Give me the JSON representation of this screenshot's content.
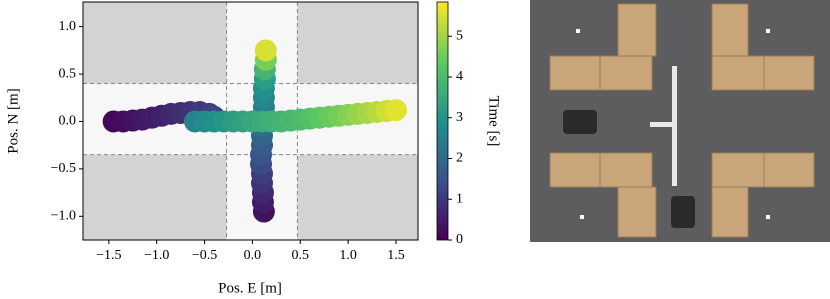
{
  "chart_data": {
    "type": "scatter",
    "xlabel": "Pos. E [m]",
    "ylabel": "Pos. N [m]",
    "colorbar_label": "Time [s]",
    "colormap": "viridis",
    "xlim": [
      -1.77,
      1.73
    ],
    "ylim": [
      -1.25,
      1.26
    ],
    "clim": [
      0,
      5.84
    ],
    "xticks": [
      {
        "value": -1.5,
        "label": "−1.5"
      },
      {
        "value": -1.0,
        "label": "−1.0"
      },
      {
        "value": -0.5,
        "label": "−0.5"
      },
      {
        "value": 0.0,
        "label": "0.0"
      },
      0.5,
      {
        "value": 1.0,
        "label": "1.0"
      },
      1.5
    ],
    "yticks": [
      {
        "value": -1.0,
        "label": "−1.0"
      },
      {
        "value": -0.5,
        "label": "−0.5"
      },
      {
        "value": 0.0,
        "label": "0.0"
      },
      0.5,
      {
        "value": 1.0,
        "label": "1.0"
      }
    ],
    "cticks": [
      0,
      1,
      2,
      3,
      4,
      5
    ],
    "lanes": {
      "x": [
        -0.27,
        0.47
      ],
      "y": [
        -0.35,
        0.4
      ]
    },
    "series": [
      {
        "x": [
          0.12,
          0.11,
          0.11,
          0.1,
          0.1,
          0.09,
          0.09,
          0.1,
          0.1,
          0.11,
          0.12,
          0.12,
          0.12,
          0.12,
          0.13,
          0.13,
          0.14,
          0.14
        ],
        "y": [
          -0.95,
          -0.85,
          -0.75,
          -0.65,
          -0.55,
          -0.45,
          -0.35,
          -0.25,
          -0.15,
          -0.05,
          0.05,
          0.15,
          0.25,
          0.35,
          0.45,
          0.55,
          0.65,
          0.75
        ],
        "t": [
          0.3,
          0.5,
          0.7,
          0.9,
          1.1,
          1.3,
          1.5,
          1.7,
          1.9,
          2.1,
          2.3,
          2.5,
          2.7,
          2.9,
          3.2,
          3.8,
          4.6,
          5.5
        ]
      },
      {
        "x": [
          -1.45,
          -1.35,
          -1.25,
          -1.15,
          -1.05,
          -0.95,
          -0.85,
          -0.75,
          -0.65,
          -0.55,
          -0.45,
          -0.4,
          -0.6,
          -0.5,
          -0.4,
          -0.3,
          -0.2,
          -0.1,
          0.0,
          0.1,
          0.2,
          0.3,
          0.4,
          0.5,
          0.6,
          0.7,
          0.8,
          0.9,
          1.0,
          1.1,
          1.2,
          1.3,
          1.4,
          1.5
        ],
        "y": [
          0.0,
          0.0,
          0.01,
          0.02,
          0.04,
          0.06,
          0.08,
          0.09,
          0.1,
          0.1,
          0.08,
          0.05,
          0.0,
          0.0,
          0.0,
          0.0,
          0.0,
          0.0,
          0.0,
          0.0,
          0.0,
          0.0,
          0.01,
          0.02,
          0.03,
          0.04,
          0.05,
          0.06,
          0.07,
          0.08,
          0.09,
          0.1,
          0.11,
          0.12
        ],
        "t": [
          0.1,
          0.2,
          0.3,
          0.4,
          0.5,
          0.6,
          0.7,
          0.8,
          0.9,
          1.0,
          1.1,
          1.2,
          2.6,
          2.75,
          2.9,
          3.05,
          3.2,
          3.35,
          3.5,
          3.6,
          3.7,
          3.8,
          3.9,
          4.0,
          4.15,
          4.3,
          4.45,
          4.6,
          4.75,
          4.9,
          5.05,
          5.2,
          5.4,
          5.6
        ]
      }
    ]
  }
}
